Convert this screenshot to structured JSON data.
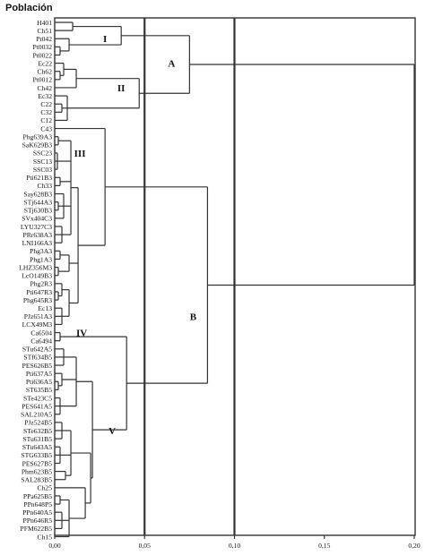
{
  "title": "Población",
  "leaves": [
    "H401",
    "Ch51",
    "Pt042",
    "Pt0032",
    "Pt0022",
    "Ec22",
    "Ch62",
    "Pt0012",
    "Ch42",
    "Ec32",
    "C22",
    "C32",
    "C12",
    "C43",
    "Phg639A3",
    "SaK629B3",
    "SSC23",
    "SSC13",
    "SSC03",
    "Pti621B3",
    "Ch33",
    "Say628B3",
    "STj644A3",
    "STj630B3",
    "SVx404C3",
    "LYU327C3",
    "PRr638A3",
    "LNI166A3",
    "Phg3A3",
    "Phg1A3",
    "LHZ356M3",
    "LcO149B3",
    "Phg2R3",
    "Pti647R3",
    "Phg645R3",
    "Ec13",
    "PJz651A3",
    "LCX49M3",
    "Ca6504",
    "Ca6494",
    "STu642A5",
    "STf634B5",
    "PES626B5",
    "Pti637A5",
    "Pti636A5",
    "ST635B5",
    "STe423C5",
    "PES641A5",
    "SAL210A5",
    "PJz524B5",
    "STe632B5",
    "STu631B5",
    "STu643A5",
    "STG633B5",
    "PES627B5",
    "Phm623B5",
    "SAL283B5",
    "Ch25",
    "PPa625B5",
    "PPn648P5",
    "PPn640A5",
    "PPn646R5",
    "PFM622B5",
    "Ch15"
  ],
  "axis": {
    "min": 0,
    "max": 0.2,
    "ticks": [
      0,
      0.05,
      0.1,
      0.15,
      0.2
    ],
    "tick_labels": [
      "0,00",
      "0,05",
      "0,10",
      "0,15",
      "0,20"
    ],
    "reference_lines": [
      0.05,
      0.1
    ]
  },
  "groups": [
    {
      "label": "I",
      "leaf": 2,
      "x": 0.028
    },
    {
      "label": "II",
      "leaf": 8,
      "x": 0.037
    },
    {
      "label": "III",
      "leaf": 16,
      "x": 0.014
    },
    {
      "label": "IV",
      "leaf": 38,
      "x": 0.015
    },
    {
      "label": "V",
      "leaf": 50,
      "x": 0.032
    },
    {
      "label": "A",
      "leaf": 5,
      "x": 0.065
    },
    {
      "label": "B",
      "leaf": 36,
      "x": 0.077
    }
  ],
  "tree": {
    "h": 0.2,
    "c": [
      {
        "h": 0.075,
        "c": [
          {
            "h": 0.037,
            "c": [
              {
                "h": 0.01,
                "c": [
                  0,
                  1
                ]
              },
              {
                "h": 0.008,
                "c": [
                  2,
                  {
                    "h": 0.003,
                    "c": [
                      3,
                      4
                    ]
                  }
                ]
              }
            ]
          },
          {
            "h": 0.047,
            "c": [
              {
                "h": 0.012,
                "c": [
                  {
                    "h": 0.005,
                    "c": [
                      5,
                      {
                        "h": 0.003,
                        "c": [
                          6,
                          7
                        ]
                      }
                    ]
                  },
                  8
                ]
              },
              {
                "h": 0.007,
                "c": [
                  9,
                  {
                    "h": 0.004,
                    "c": [
                      10,
                      11
                    ]
                  },
                  12
                ]
              }
            ]
          }
        ]
      },
      {
        "h": 0.085,
        "c": [
          {
            "h": 0.028,
            "c": [
              13,
              {
                "h": 0.013,
                "c": [
                  {
                    "h": 0.009,
                    "c": [
                      {
                        "h": 0.002,
                        "c": [
                          14,
                          15
                        ]
                      },
                      {
                        "h": 0.0015,
                        "c": [
                          16,
                          17,
                          18
                        ]
                      },
                      {
                        "h": 0.003,
                        "c": [
                          19,
                          20
                        ]
                      },
                      {
                        "h": 0.005,
                        "c": [
                          21,
                          {
                            "h": 0.002,
                            "c": [
                              22,
                              23
                            ]
                          },
                          24
                        ]
                      },
                      {
                        "h": 0.004,
                        "c": [
                          25,
                          26,
                          27
                        ]
                      }
                    ]
                  },
                  {
                    "h": 0.008,
                    "c": [
                      {
                        "h": 0.003,
                        "c": [
                          28,
                          29
                        ]
                      },
                      {
                        "h": 0.002,
                        "c": [
                          30,
                          31
                        ]
                      }
                    ]
                  },
                  {
                    "h": 0.008,
                    "c": [
                      {
                        "h": 0.004,
                        "c": [
                          32,
                          {
                            "h": 0.002,
                            "c": [
                              33,
                              34
                            ]
                          }
                        ]
                      },
                      {
                        "h": 0.004,
                        "c": [
                          35,
                          36,
                          37
                        ]
                      }
                    ]
                  }
                ]
              }
            ]
          },
          {
            "h": 0.04,
            "c": [
              {
                "h": 0.003,
                "c": [
                  38,
                  39
                ]
              },
              {
                "h": 0.021,
                "c": [
                  {
                    "h": 0.012,
                    "c": [
                      {
                        "h": 0.005,
                        "c": [
                          40,
                          41,
                          42
                        ]
                      },
                      {
                        "h": 0.004,
                        "c": [
                          43,
                          {
                            "h": 0.002,
                            "c": [
                              44,
                              45
                            ]
                          }
                        ]
                      },
                      {
                        "h": 0.003,
                        "c": [
                          46,
                          47,
                          48
                        ]
                      }
                    ]
                  },
                  {
                    "h": 0.02,
                    "c": [
                      {
                        "h": 0.009,
                        "c": [
                          {
                            "h": 0.004,
                            "c": [
                              49,
                              50,
                              51
                            ]
                          },
                          {
                            "h": 0.003,
                            "c": [
                              52,
                              53,
                              54
                            ]
                          },
                          {
                            "h": 0.006,
                            "c": [
                              55,
                              56
                            ]
                          }
                        ]
                      },
                      {
                        "h": 0.017,
                        "c": [
                          57,
                          {
                            "h": 0.008,
                            "c": [
                              {
                                "h": 0.003,
                                "c": [
                                  58,
                                  59
                                ]
                              },
                              {
                                "h": 0.004,
                                "c": [
                                  60,
                                  61,
                                  62
                                ]
                              },
                              63
                            ]
                          }
                        ]
                      }
                    ]
                  }
                ]
              }
            ]
          }
        ]
      }
    ]
  }
}
